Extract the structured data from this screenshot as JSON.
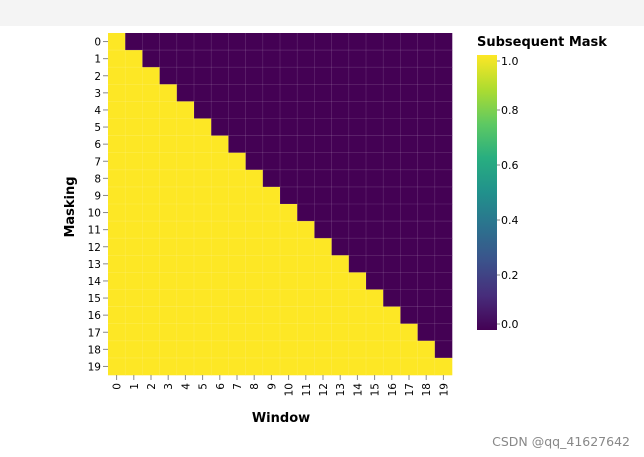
{
  "chart_data": {
    "type": "heatmap",
    "title": "",
    "xlabel": "Window",
    "ylabel": "Masking",
    "x": [
      0,
      1,
      2,
      3,
      4,
      5,
      6,
      7,
      8,
      9,
      10,
      11,
      12,
      13,
      14,
      15,
      16,
      17,
      18,
      19
    ],
    "y": [
      0,
      1,
      2,
      3,
      4,
      5,
      6,
      7,
      8,
      9,
      10,
      11,
      12,
      13,
      14,
      15,
      16,
      17,
      18,
      19
    ],
    "rule": "value = 1 when Window <= Masking, else 0",
    "legend": {
      "title": "Subsequent Mask",
      "ticks": [
        "1.0",
        "0.8",
        "0.6",
        "0.4",
        "0.2",
        "0.0"
      ],
      "range": [
        0,
        1
      ],
      "colormap": "viridis"
    },
    "colors": {
      "one": "#fde725",
      "zero": "#440154"
    }
  },
  "watermark": "CSDN @qq_41627642"
}
